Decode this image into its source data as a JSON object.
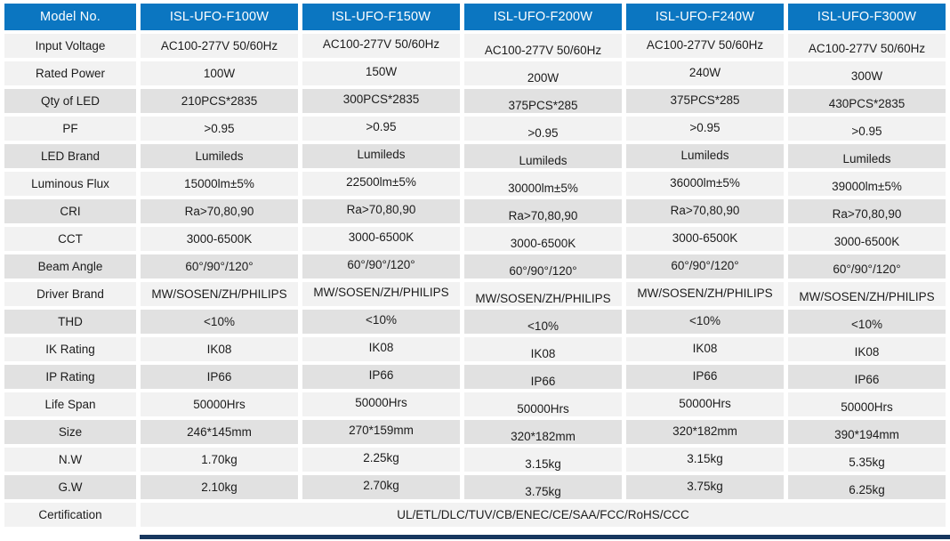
{
  "table": {
    "header": {
      "label": "Model No.",
      "models": [
        "ISL-UFO-F100W",
        "ISL-UFO-F150W",
        "ISL-UFO-F200W",
        "ISL-UFO-F240W",
        "ISL-UFO-F300W"
      ]
    },
    "rows": [
      {
        "label": "Input Voltage",
        "values": [
          "AC100-277V 50/60Hz",
          "AC100-277V 50/60Hz",
          "AC100-277V 50/60Hz",
          "AC100-277V 50/60Hz",
          "AC100-277V 50/60Hz"
        ]
      },
      {
        "label": "Rated Power",
        "values": [
          "100W",
          "150W",
          "200W",
          "240W",
          "300W"
        ]
      },
      {
        "label": "Qty of LED",
        "values": [
          "210PCS*2835",
          "300PCS*2835",
          "375PCS*285",
          "375PCS*285",
          "430PCS*2835"
        ]
      },
      {
        "label": "PF",
        "values": [
          ">0.95",
          ">0.95",
          ">0.95",
          ">0.95",
          ">0.95"
        ]
      },
      {
        "label": "LED Brand",
        "values": [
          "Lumileds",
          "Lumileds",
          "Lumileds",
          "Lumileds",
          "Lumileds"
        ]
      },
      {
        "label": "Luminous Flux",
        "values": [
          "15000lm±5%",
          "22500lm±5%",
          "30000lm±5%",
          "36000lm±5%",
          "39000lm±5%"
        ]
      },
      {
        "label": "CRI",
        "values": [
          "Ra>70,80,90",
          "Ra>70,80,90",
          "Ra>70,80,90",
          "Ra>70,80,90",
          "Ra>70,80,90"
        ]
      },
      {
        "label": "CCT",
        "values": [
          "3000-6500K",
          "3000-6500K",
          "3000-6500K",
          "3000-6500K",
          "3000-6500K"
        ]
      },
      {
        "label": "Beam Angle",
        "values": [
          "60°/90°/120°",
          "60°/90°/120°",
          "60°/90°/120°",
          "60°/90°/120°",
          "60°/90°/120°"
        ]
      },
      {
        "label": "Driver Brand",
        "values": [
          "MW/SOSEN/ZH/PHILIPS",
          "MW/SOSEN/ZH/PHILIPS",
          "MW/SOSEN/ZH/PHILIPS",
          "MW/SOSEN/ZH/PHILIPS",
          "MW/SOSEN/ZH/PHILIPS"
        ]
      },
      {
        "label": "THD",
        "values": [
          "<10%",
          "<10%",
          "<10%",
          "<10%",
          "<10%"
        ]
      },
      {
        "label": "IK Rating",
        "values": [
          "IK08",
          "IK08",
          "IK08",
          "IK08",
          "IK08"
        ]
      },
      {
        "label": "IP Rating",
        "values": [
          "IP66",
          "IP66",
          "IP66",
          "IP66",
          "IP66"
        ]
      },
      {
        "label": "Life Span",
        "values": [
          "50000Hrs",
          "50000Hrs",
          "50000Hrs",
          "50000Hrs",
          "50000Hrs"
        ]
      },
      {
        "label": "Size",
        "values": [
          "246*145mm",
          "270*159mm",
          "320*182mm",
          "320*182mm",
          "390*194mm"
        ]
      },
      {
        "label": "N.W",
        "values": [
          "1.70kg",
          "2.25kg",
          "3.15kg",
          "3.15kg",
          "5.35kg"
        ]
      },
      {
        "label": "G.W",
        "values": [
          "2.10kg",
          "2.70kg",
          "3.75kg",
          "3.75kg",
          "6.25kg"
        ]
      },
      {
        "label": "Certification",
        "merged_value": "UL/ETL/DLC/TUV/CB/ENEC/CE/SAA/FCC/RoHS/CCC"
      }
    ]
  },
  "colors": {
    "header_blue": "#0b76c1",
    "header_text": "#ffffff",
    "row_light": "#f2f2f2",
    "row_dark": "#e1e1e1",
    "body_text": "#1c1c1c",
    "bottom_bar": "#17375e"
  }
}
